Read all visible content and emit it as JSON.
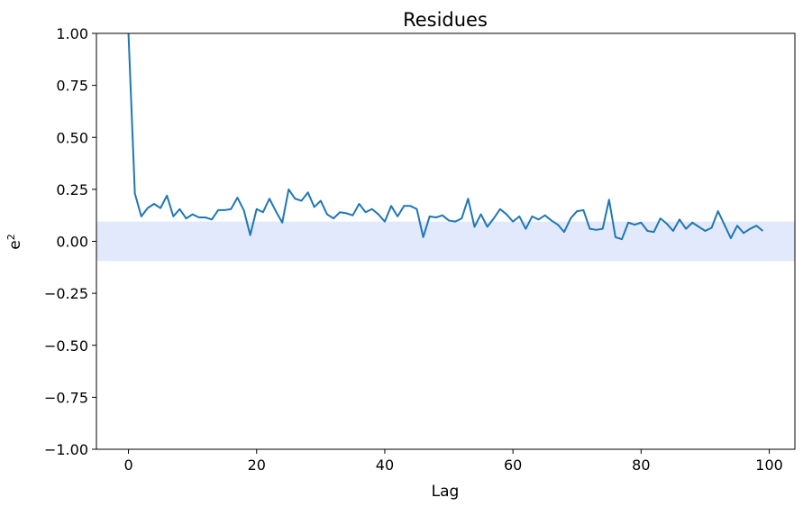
{
  "chart_data": {
    "type": "line",
    "title": "Residues",
    "xlabel": "Lag",
    "ylabel_base": "e",
    "ylabel_sup": "2",
    "xlim": [
      -5,
      104
    ],
    "ylim": [
      -1.0,
      1.0
    ],
    "xticks": [
      0,
      20,
      40,
      60,
      80,
      100
    ],
    "xtick_labels": [
      "0",
      "20",
      "40",
      "60",
      "80",
      "100"
    ],
    "yticks": [
      -1.0,
      -0.75,
      -0.5,
      -0.25,
      0.0,
      0.25,
      0.5,
      0.75,
      1.0
    ],
    "ytick_labels": [
      "−1.00",
      "−0.75",
      "−0.50",
      "−0.25",
      "0.00",
      "0.25",
      "0.50",
      "0.75",
      "1.00"
    ],
    "grid": false,
    "confidence_band": {
      "lower": -0.095,
      "upper": 0.095,
      "color": "#e3e9fd"
    },
    "series": [
      {
        "color": "#1f77b4",
        "x": [
          0,
          1,
          2,
          3,
          4,
          5,
          6,
          7,
          8,
          9,
          10,
          11,
          12,
          13,
          14,
          15,
          16,
          17,
          18,
          19,
          20,
          21,
          22,
          23,
          24,
          25,
          26,
          27,
          28,
          29,
          30,
          31,
          32,
          33,
          34,
          35,
          36,
          37,
          38,
          39,
          40,
          41,
          42,
          43,
          44,
          45,
          46,
          47,
          48,
          49,
          50,
          51,
          52,
          53,
          54,
          55,
          56,
          57,
          58,
          59,
          60,
          61,
          62,
          63,
          64,
          65,
          66,
          67,
          68,
          69,
          70,
          71,
          72,
          73,
          74,
          75,
          76,
          77,
          78,
          79,
          80,
          81,
          82,
          83,
          84,
          85,
          86,
          87,
          88,
          89,
          90,
          91,
          92,
          93,
          94,
          95,
          96,
          97,
          98,
          99
        ],
        "y": [
          1.0,
          0.23,
          0.12,
          0.16,
          0.18,
          0.16,
          0.22,
          0.12,
          0.155,
          0.11,
          0.13,
          0.115,
          0.115,
          0.105,
          0.15,
          0.15,
          0.155,
          0.21,
          0.15,
          0.03,
          0.155,
          0.14,
          0.205,
          0.145,
          0.09,
          0.25,
          0.205,
          0.195,
          0.235,
          0.165,
          0.195,
          0.13,
          0.11,
          0.14,
          0.135,
          0.125,
          0.18,
          0.14,
          0.155,
          0.13,
          0.095,
          0.17,
          0.12,
          0.17,
          0.17,
          0.155,
          0.02,
          0.12,
          0.115,
          0.125,
          0.1,
          0.095,
          0.11,
          0.205,
          0.07,
          0.13,
          0.07,
          0.11,
          0.155,
          0.13,
          0.095,
          0.12,
          0.06,
          0.12,
          0.105,
          0.125,
          0.1,
          0.08,
          0.045,
          0.11,
          0.145,
          0.15,
          0.06,
          0.055,
          0.06,
          0.2,
          0.02,
          0.01,
          0.09,
          0.08,
          0.09,
          0.05,
          0.045,
          0.11,
          0.085,
          0.05,
          0.105,
          0.06,
          0.09,
          0.07,
          0.05,
          0.065,
          0.145,
          0.08,
          0.015,
          0.075,
          0.04,
          0.06,
          0.075,
          0.05
        ]
      }
    ]
  }
}
